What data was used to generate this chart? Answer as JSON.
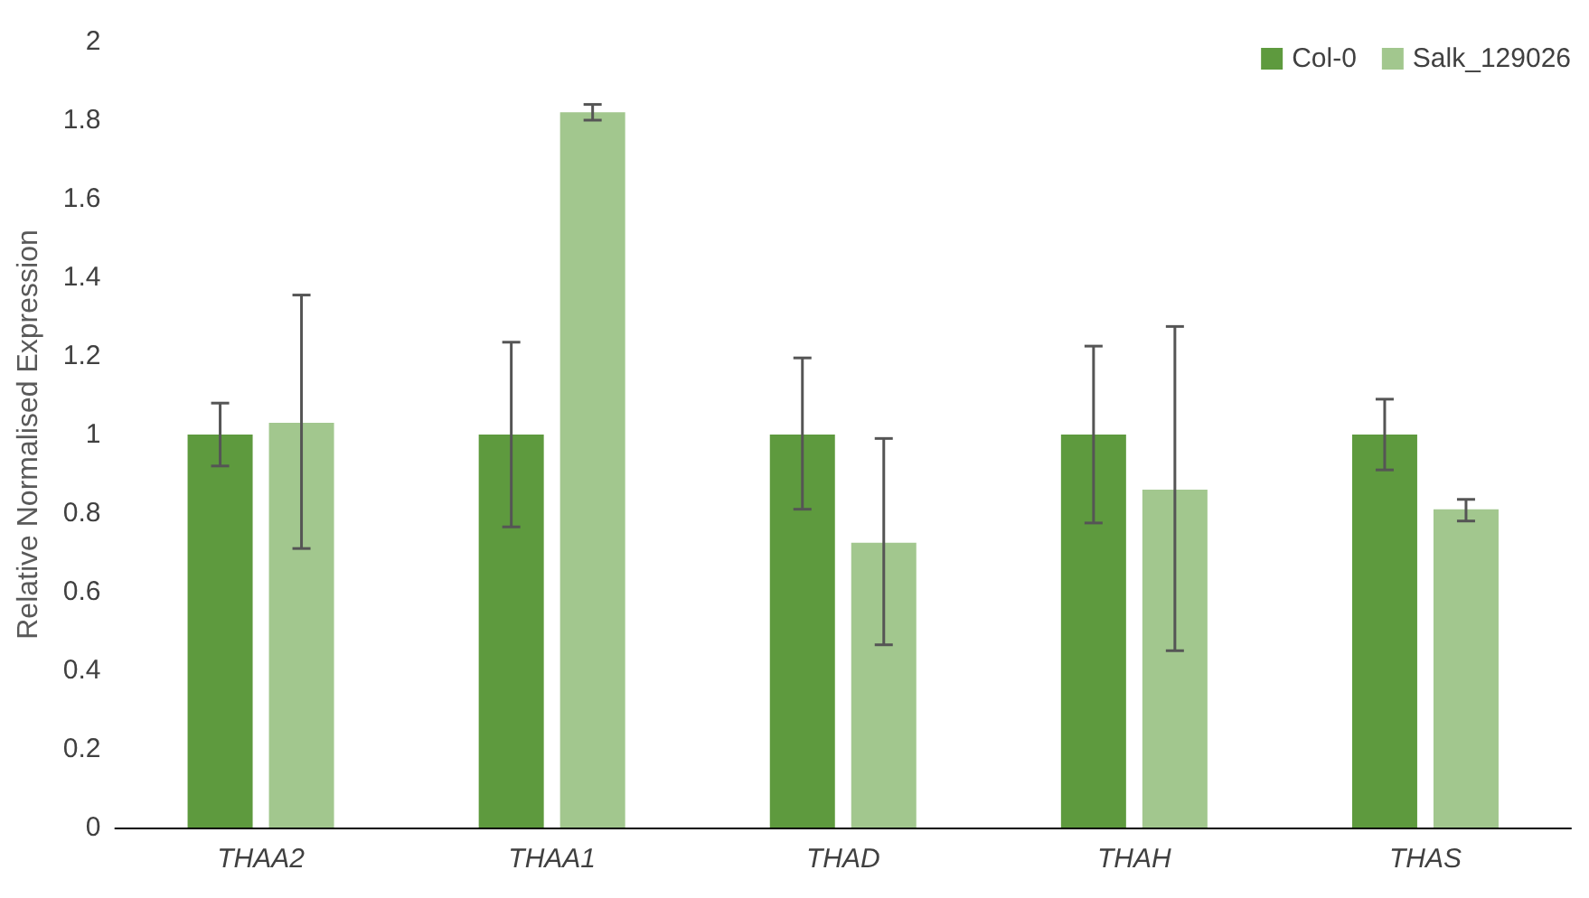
{
  "chart_data": {
    "type": "bar",
    "ylabel": "Relative Normalised Expression",
    "categories": [
      "THAA2",
      "THAA1",
      "THAD",
      "THAH",
      "THAS"
    ],
    "series": [
      {
        "name": "Col-0",
        "color": "#5e9a3e",
        "values": [
          1,
          1,
          1,
          1,
          1
        ],
        "errors": [
          [
            0.92,
            1.08
          ],
          [
            0.765,
            1.235
          ],
          [
            0.81,
            1.195
          ],
          [
            0.775,
            1.225
          ],
          [
            0.91,
            1.09
          ]
        ]
      },
      {
        "name": "Salk_129026",
        "color": "#a2c78e",
        "values": [
          1.03,
          1.82,
          0.725,
          0.86,
          0.81
        ],
        "errors": [
          [
            0.71,
            1.355
          ],
          [
            1.8,
            1.84
          ],
          [
            0.465,
            0.99
          ],
          [
            0.45,
            1.275
          ],
          [
            0.78,
            0.835
          ]
        ]
      }
    ],
    "ylim": [
      0,
      2
    ],
    "yticks": [
      0,
      0.2,
      0.4,
      0.6,
      0.8,
      1,
      1.2,
      1.4,
      1.6,
      1.8,
      2
    ],
    "grid": false,
    "legend": "top right"
  }
}
